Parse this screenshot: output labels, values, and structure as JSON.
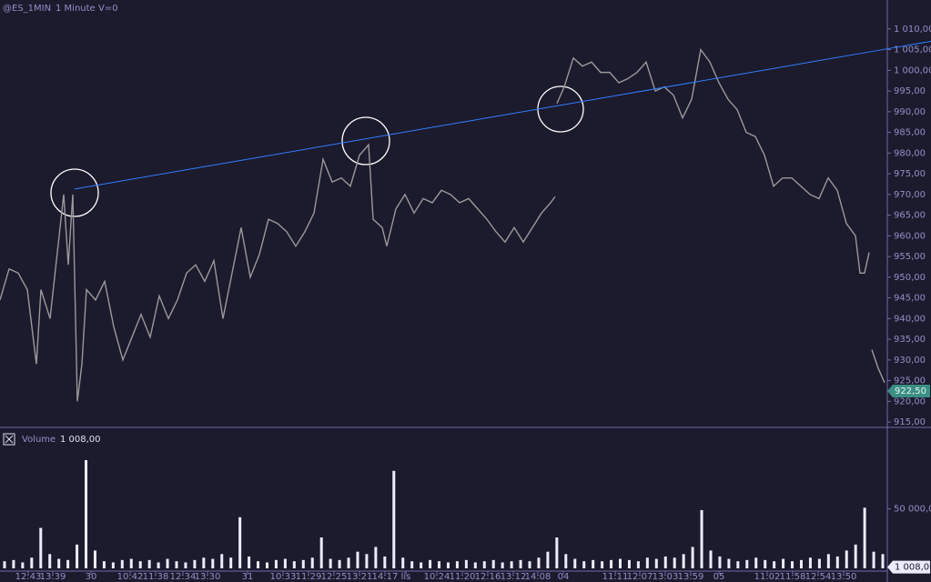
{
  "chart_data": [
    {
      "type": "line",
      "symbol": "@ES_1MIN",
      "interval": "1 Minute",
      "volume_setting": "V=0",
      "xlim": [
        0,
        975
      ],
      "ylim": [
        913.7,
        1017
      ],
      "yticks": [
        {
          "value": 915,
          "label": "915,00"
        },
        {
          "value": 920,
          "label": "920,00"
        },
        {
          "value": 925,
          "label": "925,00"
        },
        {
          "value": 930,
          "label": "930,00"
        },
        {
          "value": 935,
          "label": "935,00"
        },
        {
          "value": 940,
          "label": "940,00"
        },
        {
          "value": 945,
          "label": "945,00"
        },
        {
          "value": 950,
          "label": "950,00"
        },
        {
          "value": 955,
          "label": "955,00"
        },
        {
          "value": 960,
          "label": "960,00"
        },
        {
          "value": 965,
          "label": "965,00"
        },
        {
          "value": 970,
          "label": "970,00"
        },
        {
          "value": 975,
          "label": "975,00"
        },
        {
          "value": 980,
          "label": "980,00"
        },
        {
          "value": 985,
          "label": "985,00"
        },
        {
          "value": 990,
          "label": "990,00"
        },
        {
          "value": 995,
          "label": "995,00"
        },
        {
          "value": 1000,
          "label": "1 000,00"
        },
        {
          "value": 1005,
          "label": "1 005,00"
        },
        {
          "value": 1010,
          "label": "1 010,00"
        }
      ],
      "series": [
        {
          "color": "#9a9a9a",
          "x": [
            0,
            10,
            20,
            30,
            40,
            45,
            55,
            65,
            70,
            75,
            80,
            85,
            90,
            95,
            105,
            115,
            125,
            135,
            145,
            155,
            165,
            175,
            185,
            195,
            205,
            215,
            225,
            235,
            245,
            255,
            265,
            275,
            285,
            295,
            305,
            315,
            325,
            335,
            345,
            355,
            365,
            375,
            385,
            395,
            405,
            410,
            420,
            425,
            435,
            445,
            455,
            465,
            475,
            485,
            495,
            505,
            515,
            525,
            535,
            545,
            555,
            565,
            575,
            585,
            595,
            605,
            610,
            611,
            612,
            620,
            630,
            640,
            650,
            660,
            670,
            680,
            690,
            700,
            710,
            720,
            730,
            740,
            750,
            760,
            770,
            780,
            790,
            800,
            810,
            820,
            830,
            840,
            850,
            860,
            870,
            880,
            890,
            900,
            910,
            920,
            930,
            940,
            945,
            950,
            955,
            956,
            958,
            965,
            972
          ],
          "values": [
            944.5,
            952,
            951,
            947,
            929,
            947,
            940,
            960,
            970,
            953,
            970,
            920,
            929,
            947,
            944.5,
            949,
            938,
            930,
            935.5,
            941,
            935.5,
            945.5,
            940,
            944.5,
            951,
            953,
            949,
            954,
            940,
            951,
            962,
            950,
            955.5,
            964,
            963,
            961,
            957.5,
            961,
            965.5,
            978.5,
            973,
            974,
            972,
            979.5,
            982,
            964,
            962,
            957.5,
            966.5,
            970,
            965.5,
            969,
            968,
            971,
            970,
            968,
            969,
            966.5,
            964,
            961,
            958.5,
            962,
            958.5,
            962,
            965.5,
            968,
            969.5,
            null,
            992,
            996,
            1003,
            1001,
            1002,
            999.5,
            999.5,
            997,
            998,
            999.5,
            1002,
            995,
            996,
            994,
            988.5,
            993,
            1005,
            1002,
            997,
            993,
            990.5,
            985,
            984,
            979.5,
            972,
            974,
            974,
            972,
            970,
            969,
            974,
            971,
            963,
            960,
            951,
            951,
            956,
            null,
            932.5,
            928,
            924.5
          ]
        }
      ],
      "trend_line": {
        "color": "#2f7fff",
        "x": [
          82,
          975
        ],
        "y": [
          971.3,
          1005.2
        ]
      },
      "last_value": {
        "value": 922.5,
        "label": "922,50"
      }
    },
    {
      "type": "bar",
      "title": "Volume",
      "color": "#ecebff",
      "xlim": [
        0,
        975
      ],
      "ylim": [
        0,
        117000
      ],
      "yticks": [
        {
          "value": 50000,
          "label": "50 000,00"
        }
      ],
      "last_value": {
        "value": 1008,
        "label": "1 008,00"
      },
      "xticks": [
        {
          "value": 31,
          "label": "12:43"
        },
        {
          "value": 58,
          "label": "13:39"
        },
        {
          "value": 100,
          "label": "30"
        },
        {
          "value": 143,
          "label": "10:42"
        },
        {
          "value": 171,
          "label": "11:38"
        },
        {
          "value": 201,
          "label": "12:34"
        },
        {
          "value": 228,
          "label": "13:30"
        },
        {
          "value": 272,
          "label": "31"
        },
        {
          "value": 311,
          "label": "10:33"
        },
        {
          "value": 339,
          "label": "11:29"
        },
        {
          "value": 367,
          "label": "12:25"
        },
        {
          "value": 395,
          "label": "13:21"
        },
        {
          "value": 423,
          "label": "14:17"
        },
        {
          "value": 446,
          "label": "lis"
        },
        {
          "value": 480,
          "label": "10:24"
        },
        {
          "value": 508,
          "label": "11:20"
        },
        {
          "value": 536,
          "label": "12:16"
        },
        {
          "value": 564,
          "label": "13:12"
        },
        {
          "value": 591,
          "label": "14:08"
        },
        {
          "value": 619,
          "label": "04"
        },
        {
          "value": 676,
          "label": "11:11"
        },
        {
          "value": 703,
          "label": "12:07"
        },
        {
          "value": 731,
          "label": "13:03"
        },
        {
          "value": 759,
          "label": "13:59"
        },
        {
          "value": 790,
          "label": "05"
        },
        {
          "value": 843,
          "label": "11:02"
        },
        {
          "value": 871,
          "label": "11:58"
        },
        {
          "value": 899,
          "label": "12:54"
        },
        {
          "value": 927,
          "label": "13:50"
        }
      ],
      "values": [
        6000,
        7000,
        5000,
        9000,
        34000,
        12000,
        8000,
        7000,
        20000,
        91000,
        15000,
        6000,
        5000,
        7000,
        8000,
        6000,
        7000,
        5000,
        8000,
        6000,
        5000,
        7000,
        9000,
        8000,
        12000,
        9000,
        43000,
        10000,
        6000,
        5000,
        7000,
        8000,
        6000,
        7000,
        9000,
        26000,
        8000,
        7000,
        9000,
        14000,
        12000,
        18000,
        10000,
        82000,
        9000,
        6000,
        5000,
        7000,
        6000,
        5000,
        6000,
        7000,
        5000,
        6000,
        7000,
        5000,
        6000,
        7000,
        6000,
        9000,
        14000,
        26000,
        12000,
        8000,
        6000,
        7000,
        6000,
        7000,
        8000,
        7000,
        6000,
        9000,
        8000,
        10000,
        9000,
        12000,
        18000,
        49000,
        15000,
        10000,
        8000,
        6000,
        7000,
        9000,
        7000,
        6000,
        8000,
        6000,
        7000,
        9000,
        8000,
        12000,
        10000,
        15000,
        20000,
        51000,
        14000,
        12000
      ]
    }
  ]
}
